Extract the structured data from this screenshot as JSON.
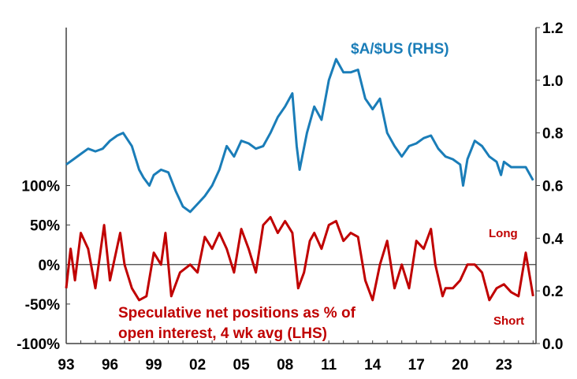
{
  "chart_data": {
    "type": "line",
    "title": "",
    "colors": {
      "aud": "#1a7db8",
      "spec": "#c00000",
      "axis": "#404040"
    },
    "x_ticks": [
      "93",
      "96",
      "99",
      "02",
      "05",
      "08",
      "11",
      "14",
      "17",
      "20",
      "23"
    ],
    "x_tick_years": [
      1993,
      1996,
      1999,
      2002,
      2005,
      2008,
      2011,
      2014,
      2017,
      2020,
      2023
    ],
    "xlim": [
      1993,
      2025.2
    ],
    "left_axis": {
      "ticks": [
        "100%",
        "50%",
        "0%",
        "-50%",
        "-100%"
      ],
      "tick_values": [
        100,
        50,
        0,
        -50,
        -100
      ],
      "ylim": [
        -100,
        300
      ]
    },
    "right_axis": {
      "ticks": [
        "1.2",
        "1.0",
        "0.8",
        "0.6",
        "0.4",
        "0.2",
        "0.0"
      ],
      "tick_values": [
        1.2,
        1.0,
        0.8,
        0.6,
        0.4,
        0.2,
        0.0
      ],
      "ylim": [
        0,
        1.2
      ]
    },
    "annotations": {
      "long": "Long",
      "short": "Short"
    },
    "series": [
      {
        "name": "$A/$US (RHS)",
        "axis": "right",
        "x": [
          1993,
          1993.5,
          1994,
          1994.5,
          1995,
          1995.5,
          1996,
          1996.5,
          1996.9,
          1997.5,
          1998,
          1998.3,
          1998.7,
          1999,
          1999.5,
          2000,
          2000.5,
          2001,
          2001.5,
          2002,
          2002.5,
          2003,
          2003.5,
          2004,
          2004.5,
          2005,
          2005.5,
          2006,
          2006.5,
          2007,
          2007.5,
          2008,
          2008.5,
          2008.8,
          2009,
          2009.5,
          2010,
          2010.5,
          2011,
          2011.5,
          2012,
          2012.5,
          2013,
          2013.5,
          2014,
          2014.5,
          2015,
          2015.5,
          2016,
          2016.5,
          2017,
          2017.5,
          2018,
          2018.5,
          2019,
          2019.5,
          2020,
          2020.2,
          2020.5,
          2021,
          2021.5,
          2022,
          2022.5,
          2022.8,
          2023,
          2023.5,
          2024,
          2024.5,
          2025
        ],
        "values": [
          0.68,
          0.7,
          0.72,
          0.74,
          0.73,
          0.74,
          0.77,
          0.79,
          0.8,
          0.75,
          0.66,
          0.63,
          0.6,
          0.64,
          0.66,
          0.65,
          0.58,
          0.52,
          0.5,
          0.53,
          0.56,
          0.6,
          0.66,
          0.75,
          0.71,
          0.77,
          0.76,
          0.74,
          0.75,
          0.8,
          0.86,
          0.9,
          0.95,
          0.75,
          0.66,
          0.8,
          0.9,
          0.85,
          1.0,
          1.08,
          1.03,
          1.03,
          1.04,
          0.93,
          0.89,
          0.93,
          0.8,
          0.75,
          0.71,
          0.75,
          0.76,
          0.78,
          0.79,
          0.74,
          0.71,
          0.7,
          0.68,
          0.6,
          0.7,
          0.77,
          0.75,
          0.71,
          0.69,
          0.64,
          0.69,
          0.67,
          0.67,
          0.67,
          0.62
        ]
      },
      {
        "name": "Speculative net positions as % of open interest, 4 wk avg (LHS)",
        "label_line1": "Speculative net positions as % of",
        "label_line2": "open interest, 4 wk avg (LHS)",
        "axis": "left",
        "x": [
          1993,
          1993.3,
          1993.6,
          1994,
          1994.5,
          1995,
          1995.6,
          1996,
          1996.7,
          1997,
          1997.5,
          1998,
          1998.5,
          1999,
          1999.5,
          1999.8,
          2000.2,
          2000.8,
          2001.5,
          2002,
          2002.5,
          2003,
          2003.5,
          2004,
          2004.5,
          2005,
          2005.5,
          2006,
          2006.5,
          2007,
          2007.5,
          2008,
          2008.5,
          2008.9,
          2009.3,
          2009.7,
          2010,
          2010.5,
          2011,
          2011.5,
          2012,
          2012.5,
          2013,
          2013.5,
          2014,
          2014.5,
          2015,
          2015.5,
          2016,
          2016.5,
          2017,
          2017.5,
          2018,
          2018.3,
          2018.8,
          2019,
          2019.5,
          2020,
          2020.5,
          2021,
          2021.5,
          2022,
          2022.5,
          2023,
          2023.5,
          2024,
          2024.5,
          2025
        ],
        "values": [
          -30,
          20,
          -20,
          40,
          20,
          -30,
          50,
          -20,
          40,
          0,
          -30,
          -45,
          -40,
          15,
          0,
          40,
          -40,
          -10,
          0,
          -10,
          35,
          20,
          40,
          20,
          -10,
          45,
          20,
          -10,
          50,
          60,
          40,
          55,
          40,
          -30,
          -10,
          30,
          40,
          20,
          50,
          55,
          30,
          40,
          35,
          -20,
          -45,
          0,
          30,
          -30,
          0,
          -30,
          30,
          20,
          45,
          0,
          -40,
          -30,
          -30,
          -20,
          0,
          0,
          -10,
          -45,
          -30,
          -25,
          -35,
          -40,
          15,
          -40
        ]
      }
    ]
  }
}
